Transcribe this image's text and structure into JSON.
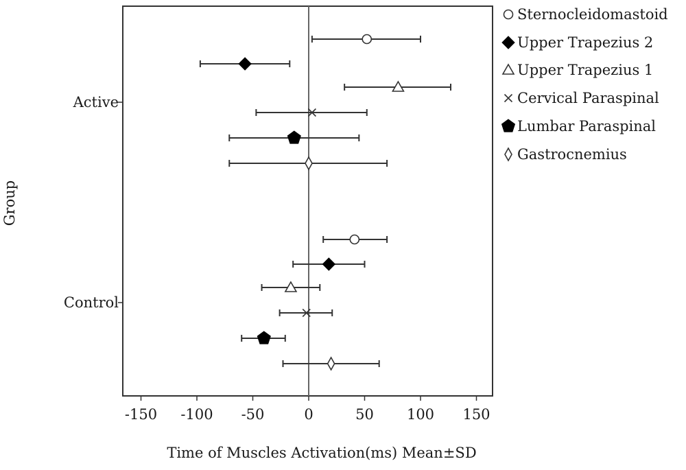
{
  "chart_data": {
    "type": "scatter",
    "subtype": "horizontal error bar (mean ± SD) by group",
    "title": "",
    "xlabel": "Time of Muscles Activation(ms) Mean±SD",
    "ylabel": "Group",
    "xlim": [
      -165,
      165
    ],
    "xticks": [
      -150,
      -100,
      -50,
      0,
      50,
      100,
      150
    ],
    "xtick_labels": [
      "-150",
      "-100",
      "-50",
      "0",
      "50",
      "100",
      "150"
    ],
    "reference_line_x": 0,
    "grid": false,
    "legend_position": "right",
    "groups": [
      "Active",
      "Control"
    ],
    "series": [
      {
        "name": "Sternocleidomastoid",
        "marker": "open-circle",
        "values": [
          {
            "group": "Active",
            "mean": 52,
            "low": 3,
            "high": 100
          },
          {
            "group": "Control",
            "mean": 41,
            "low": 13,
            "high": 70
          }
        ]
      },
      {
        "name": "Upper Trapezius 2",
        "marker": "filled-diamond",
        "values": [
          {
            "group": "Active",
            "mean": -57,
            "low": -97,
            "high": -17
          },
          {
            "group": "Control",
            "mean": 18,
            "low": -14,
            "high": 50
          }
        ]
      },
      {
        "name": "Upper Trapezius 1",
        "marker": "open-triangle",
        "values": [
          {
            "group": "Active",
            "mean": 80,
            "low": 32,
            "high": 127
          },
          {
            "group": "Control",
            "mean": -16,
            "low": -42,
            "high": 10
          }
        ]
      },
      {
        "name": "Cervical Paraspinal",
        "marker": "cross",
        "values": [
          {
            "group": "Active",
            "mean": 3,
            "low": -47,
            "high": 52
          },
          {
            "group": "Control",
            "mean": -2,
            "low": -26,
            "high": 21
          }
        ]
      },
      {
        "name": "Lumbar Paraspinal",
        "marker": "filled-pentagon",
        "values": [
          {
            "group": "Active",
            "mean": -13,
            "low": -71,
            "high": 45
          },
          {
            "group": "Control",
            "mean": -40,
            "low": -60,
            "high": -21
          }
        ]
      },
      {
        "name": "Gastrocnemius",
        "marker": "open-thin-diamond",
        "values": [
          {
            "group": "Active",
            "mean": 0,
            "low": -71,
            "high": 70
          },
          {
            "group": "Control",
            "mean": 20,
            "low": -23,
            "high": 63
          }
        ]
      }
    ]
  }
}
